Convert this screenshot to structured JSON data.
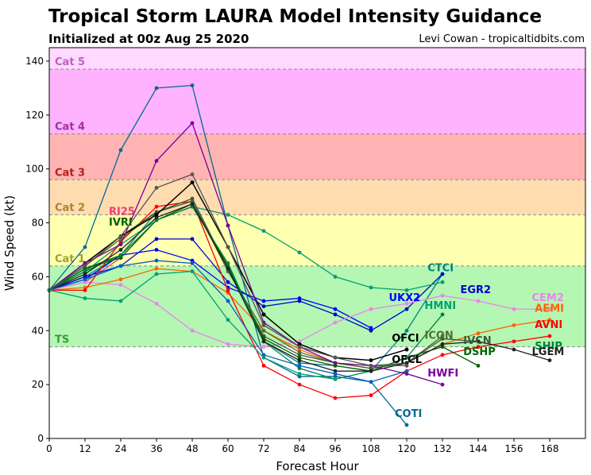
{
  "header": {
    "title": "Tropical Storm LAURA Model Intensity Guidance",
    "subtitle": "Initialized at 00z Aug 25 2020",
    "credit": "Levi Cowan - tropicaltidbits.com"
  },
  "chart_data": {
    "type": "line",
    "title": "Tropical Storm LAURA Model Intensity Guidance",
    "subtitle": "Initialized at 00z Aug 25 2020",
    "xlabel": "Forecast Hour",
    "ylabel": "Wind Speed (kt)",
    "xlim": [
      0,
      180
    ],
    "ylim": [
      0,
      145
    ],
    "xticks": [
      0,
      12,
      24,
      36,
      48,
      60,
      72,
      84,
      96,
      108,
      120,
      132,
      144,
      156,
      168
    ],
    "yticks": [
      0,
      20,
      40,
      60,
      80,
      100,
      120,
      140
    ],
    "grid": false,
    "categories_bands": [
      {
        "label": "TS",
        "from": 34,
        "to": 64,
        "color": "#b3f7b3",
        "label_color": "#3a9a3a"
      },
      {
        "label": "Cat 1",
        "from": 64,
        "to": 83,
        "color": "#ffffb0",
        "label_color": "#a0a030"
      },
      {
        "label": "Cat 2",
        "from": 83,
        "to": 96,
        "color": "#ffdcb0",
        "label_color": "#b08030"
      },
      {
        "label": "Cat 3",
        "from": 96,
        "to": 113,
        "color": "#ffb3b3",
        "label_color": "#b02020"
      },
      {
        "label": "Cat 4",
        "from": 113,
        "to": 137,
        "color": "#ffb3ff",
        "label_color": "#a030a0"
      },
      {
        "label": "Cat 5",
        "from": 137,
        "to": 145,
        "color": "#ffd9ff",
        "label_color": "#c060c0"
      }
    ],
    "series": [
      {
        "name": "COTI",
        "color": "#006994",
        "x": [
          0,
          12,
          24,
          36,
          48,
          60,
          72,
          84,
          96,
          108,
          120
        ],
        "y": [
          55,
          71,
          107,
          130,
          131,
          79,
          30,
          23,
          23,
          21,
          5
        ]
      },
      {
        "name": "RI25",
        "color": "#f03c78",
        "x": [
          0,
          12,
          24
        ],
        "y": [
          55,
          58,
          67
        ]
      },
      {
        "name": "IVRI",
        "color": "#006400",
        "x": [
          0,
          12,
          24
        ],
        "y": [
          55,
          63,
          68
        ]
      },
      {
        "name": "CTCI",
        "color": "#008080",
        "x": [
          0,
          12,
          24,
          36,
          48,
          60,
          72,
          84,
          96,
          108,
          120,
          132
        ],
        "y": [
          55,
          60,
          68,
          84,
          88,
          63,
          36,
          28,
          27,
          25,
          40,
          61
        ]
      },
      {
        "name": "EGR2",
        "color": "#0000cd",
        "x": [
          0,
          12,
          24,
          36,
          48,
          60,
          72,
          84,
          96,
          108,
          120,
          132
        ],
        "y": [
          55,
          60,
          64,
          74,
          74,
          58,
          49,
          51,
          46,
          40,
          48,
          61
        ]
      },
      {
        "name": "UKX2",
        "color": "#0000ff",
        "x": [
          0,
          12,
          24,
          36,
          48,
          60,
          72,
          84,
          96,
          108
        ],
        "y": [
          55,
          59,
          68,
          70,
          66,
          56,
          51,
          52,
          48,
          41
        ]
      },
      {
        "name": "HMNI",
        "color": "#00a070",
        "x": [
          0,
          12,
          24,
          36,
          48,
          60,
          72,
          84,
          96,
          108,
          120,
          132
        ],
        "y": [
          55,
          62,
          72,
          81,
          86,
          83,
          77,
          69,
          60,
          56,
          55,
          58
        ]
      },
      {
        "name": "CEM2",
        "color": "#ee82ee",
        "x": [
          0,
          12,
          24,
          36,
          48,
          60,
          72,
          84,
          96,
          108,
          120,
          132,
          144,
          156,
          168
        ],
        "y": [
          55,
          58,
          57,
          50,
          40,
          35,
          34,
          36,
          43,
          48,
          50,
          53,
          51,
          48,
          48
        ]
      },
      {
        "name": "AEMI",
        "color": "#ff6400",
        "x": [
          0,
          12,
          24,
          36,
          48,
          60,
          72,
          84,
          96,
          108,
          120,
          132,
          144,
          156,
          168
        ],
        "y": [
          55,
          56,
          59,
          63,
          62,
          54,
          40,
          33,
          28,
          26,
          28,
          35,
          39,
          42,
          44
        ]
      },
      {
        "name": "AVNI",
        "color": "#ff0000",
        "x": [
          0,
          12,
          24,
          36,
          48,
          60,
          72,
          84,
          96,
          108,
          120,
          132,
          144,
          156,
          168
        ],
        "y": [
          55,
          55,
          73,
          86,
          88,
          55,
          27,
          20,
          15,
          16,
          25,
          31,
          34,
          36,
          38
        ]
      },
      {
        "name": "ICON",
        "color": "#556b2f",
        "x": [
          0,
          12,
          24,
          36,
          48,
          60,
          72,
          84,
          96,
          108,
          120,
          132
        ],
        "y": [
          55,
          64,
          74,
          84,
          88,
          62,
          40,
          32,
          28,
          27,
          28,
          38
        ]
      },
      {
        "name": "IVCN",
        "color": "#3c5a3c",
        "x": [
          0,
          12,
          24,
          36,
          48,
          60,
          72,
          84,
          96,
          108,
          120,
          132,
          144
        ],
        "y": [
          55,
          64,
          75,
          84,
          89,
          63,
          38,
          31,
          28,
          26,
          28,
          37,
          36
        ]
      },
      {
        "name": "DSHP",
        "color": "#006400",
        "x": [
          0,
          12,
          24,
          36,
          48,
          60,
          72,
          84,
          96,
          108,
          120,
          132,
          144
        ],
        "y": [
          55,
          63,
          67,
          81,
          87,
          64,
          37,
          30,
          27,
          25,
          30,
          34,
          27
        ]
      },
      {
        "name": "SHIP",
        "color": "#008040",
        "x": [
          0,
          12,
          24,
          36,
          48,
          60,
          72,
          84,
          96,
          108,
          120,
          132
        ],
        "y": [
          55,
          62,
          68,
          81,
          86,
          65,
          36,
          26,
          22,
          25,
          30,
          46
        ]
      },
      {
        "name": "LGEM",
        "color": "#222222",
        "x": [
          0,
          12,
          24,
          36,
          48,
          60,
          72,
          84,
          96,
          108,
          120,
          132,
          144,
          156,
          168
        ],
        "y": [
          55,
          61,
          70,
          82,
          87,
          63,
          36,
          29,
          25,
          25,
          28,
          35,
          36,
          33,
          29
        ]
      },
      {
        "name": "OFCI",
        "color": "#000000",
        "x": [
          0,
          12,
          24,
          36,
          48,
          60,
          72,
          84,
          96,
          108,
          120
        ],
        "y": [
          55,
          65,
          75,
          83,
          95,
          71,
          46,
          35,
          30,
          29,
          33
        ]
      },
      {
        "name": "OFCL",
        "color": "#000000",
        "x": [
          0,
          12,
          24,
          36,
          48,
          60,
          72,
          84,
          96,
          108,
          120
        ],
        "y": [
          55,
          65,
          75,
          83,
          95,
          71,
          46,
          35,
          30,
          29,
          33
        ]
      },
      {
        "name": "HWFI",
        "color": "#7b0099",
        "x": [
          0,
          12,
          24,
          36,
          48,
          60,
          72,
          84,
          96,
          108,
          120,
          132
        ],
        "y": [
          55,
          65,
          72,
          103,
          117,
          79,
          43,
          34,
          28,
          27,
          24,
          20
        ]
      },
      {
        "name": "",
        "color": "#555555",
        "x": [
          0,
          12,
          24,
          36,
          48,
          60,
          72,
          84,
          96,
          108,
          120
        ],
        "y": [
          55,
          64,
          75,
          93,
          98,
          71,
          42,
          34,
          30,
          27,
          27
        ]
      },
      {
        "name": "",
        "color": "#0060c0",
        "x": [
          0,
          12,
          24,
          36,
          48,
          60,
          72,
          84,
          96,
          108,
          120
        ],
        "y": [
          55,
          59,
          64,
          66,
          65,
          51,
          31,
          27,
          24,
          21,
          25
        ]
      },
      {
        "name": "",
        "color": "#00a070",
        "x": [
          0,
          12,
          24,
          36,
          48,
          60,
          72,
          84,
          96
        ],
        "y": [
          55,
          52,
          51,
          61,
          62,
          44,
          30,
          24,
          22
        ]
      }
    ],
    "labels": [
      {
        "text": "RI25",
        "x": 20,
        "y": 83,
        "color": "#f03c78"
      },
      {
        "text": "IVRI",
        "x": 20,
        "y": 79,
        "color": "#006400"
      },
      {
        "text": "CTCI",
        "x": 127,
        "y": 62,
        "color": "#008080"
      },
      {
        "text": "EGR2",
        "x": 138,
        "y": 54,
        "color": "#0000cd"
      },
      {
        "text": "UKX2",
        "x": 114,
        "y": 51,
        "color": "#0000ff"
      },
      {
        "text": "HMNI",
        "x": 126,
        "y": 48,
        "color": "#00a070"
      },
      {
        "text": "CEM2",
        "x": 162,
        "y": 51,
        "color": "#ee82ee"
      },
      {
        "text": "AEMI",
        "x": 163,
        "y": 47,
        "color": "#ff6400"
      },
      {
        "text": "AVNI",
        "x": 163,
        "y": 41,
        "color": "#ff0000"
      },
      {
        "text": "ICON",
        "x": 126,
        "y": 37,
        "color": "#556b2f"
      },
      {
        "text": "IVCN",
        "x": 139,
        "y": 35,
        "color": "#3c5a3c"
      },
      {
        "text": "OFCI",
        "x": 115,
        "y": 36,
        "color": "#000000"
      },
      {
        "text": "OFCL",
        "x": 115,
        "y": 28,
        "color": "#000000"
      },
      {
        "text": "DSHP",
        "x": 139,
        "y": 31,
        "color": "#006400"
      },
      {
        "text": "SHIP",
        "x": 163,
        "y": 33,
        "color": "#008040"
      },
      {
        "text": "LGEM",
        "x": 162,
        "y": 31,
        "color": "#222222"
      },
      {
        "text": "HWFI",
        "x": 127,
        "y": 23,
        "color": "#7b0099"
      },
      {
        "text": "COTI",
        "x": 116,
        "y": 8,
        "color": "#006994"
      }
    ]
  }
}
